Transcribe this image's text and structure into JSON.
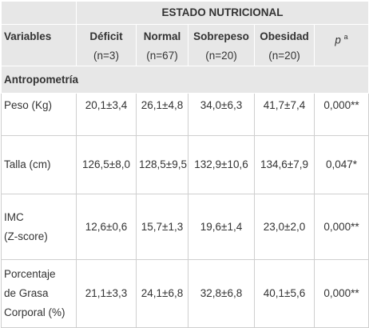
{
  "table": {
    "title": "ESTADO NUTRICIONAL",
    "variables_header": "Variables",
    "columns": [
      {
        "name": "Déficit",
        "n": "(n=3)"
      },
      {
        "name": "Normal",
        "n": "(n=67)"
      },
      {
        "name": "Sobrepeso",
        "n": "(n=20)"
      },
      {
        "name": "Obesidad",
        "n": "(n=20)"
      }
    ],
    "p_header": {
      "symbol": "p",
      "sup": "a"
    },
    "section": "Antropometría",
    "rows": [
      {
        "variable": [
          "Peso (Kg)"
        ],
        "values": [
          "20,1±3,4",
          "26,1±4,8",
          "34,0±6,3",
          "41,7±7,4"
        ],
        "p": "0,000**"
      },
      {
        "variable": [
          "Talla (cm)"
        ],
        "values": [
          "126,5±8,0",
          "128,5±9,5",
          "132,9±10,6",
          "134,6±7,9"
        ],
        "p": "0,047*"
      },
      {
        "variable": [
          "IMC",
          "(Z-score)"
        ],
        "values": [
          "12,6±0,6",
          "15,7±1,3",
          "19,6±1,4",
          "23,0±2,0"
        ],
        "p": "0,000**"
      },
      {
        "variable": [
          "Porcentaje",
          "de Grasa",
          "Corporal (%)"
        ],
        "values": [
          "21,1±3,3",
          "24,1±6,8",
          "32,8±6,8",
          "40,1±5,6"
        ],
        "p": "0,000**"
      }
    ]
  }
}
